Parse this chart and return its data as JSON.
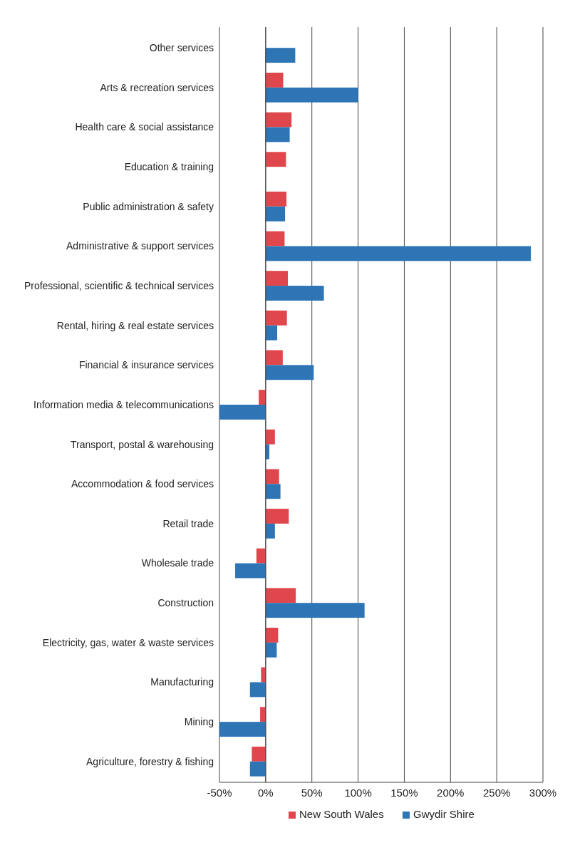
{
  "chart_data": {
    "type": "bar",
    "orientation": "horizontal",
    "categories": [
      "Other services",
      "Arts & recreation services",
      "Health care & social assistance",
      "Education & training",
      "Public administration & safety",
      "Administrative & support services",
      "Professional, scientific & technical services",
      "Rental, hiring & real estate services",
      "Financial & insurance services",
      "Information media & telecommunications",
      "Transport, postal & warehousing",
      "Accommodation & food services",
      "Retail trade",
      "Wholesale trade",
      "Construction",
      "Electricity, gas, water & waste services",
      "Manufacturing",
      "Mining",
      "Agriculture, forestry & fishing"
    ],
    "series": [
      {
        "name": "New South Wales",
        "color": "#e0474c",
        "values": [
          null,
          19,
          28,
          22,
          22.5,
          20.5,
          24,
          23,
          18.5,
          -7.5,
          10,
          14.5,
          25,
          -10,
          32.6,
          13.5,
          -5,
          -6,
          -15
        ]
      },
      {
        "name": "Gwydir Shire",
        "color": "#2e75b6",
        "values": [
          32,
          100,
          26,
          null,
          21,
          287,
          63,
          12.5,
          52,
          -50,
          4,
          16,
          10,
          -33,
          107,
          12,
          -17,
          -50,
          -17
        ]
      }
    ],
    "xlim": [
      -50,
      300
    ],
    "xticks": [
      {
        "value": -50,
        "label": "-50%"
      },
      {
        "value": 0,
        "label": "0%"
      },
      {
        "value": 50,
        "label": "50%"
      },
      {
        "value": 100,
        "label": "100%"
      },
      {
        "value": 150,
        "label": "150%"
      },
      {
        "value": 200,
        "label": "200%"
      },
      {
        "value": 250,
        "label": "250%"
      },
      {
        "value": 300,
        "label": "300%"
      }
    ],
    "grid": "x",
    "legend": "bottom"
  }
}
